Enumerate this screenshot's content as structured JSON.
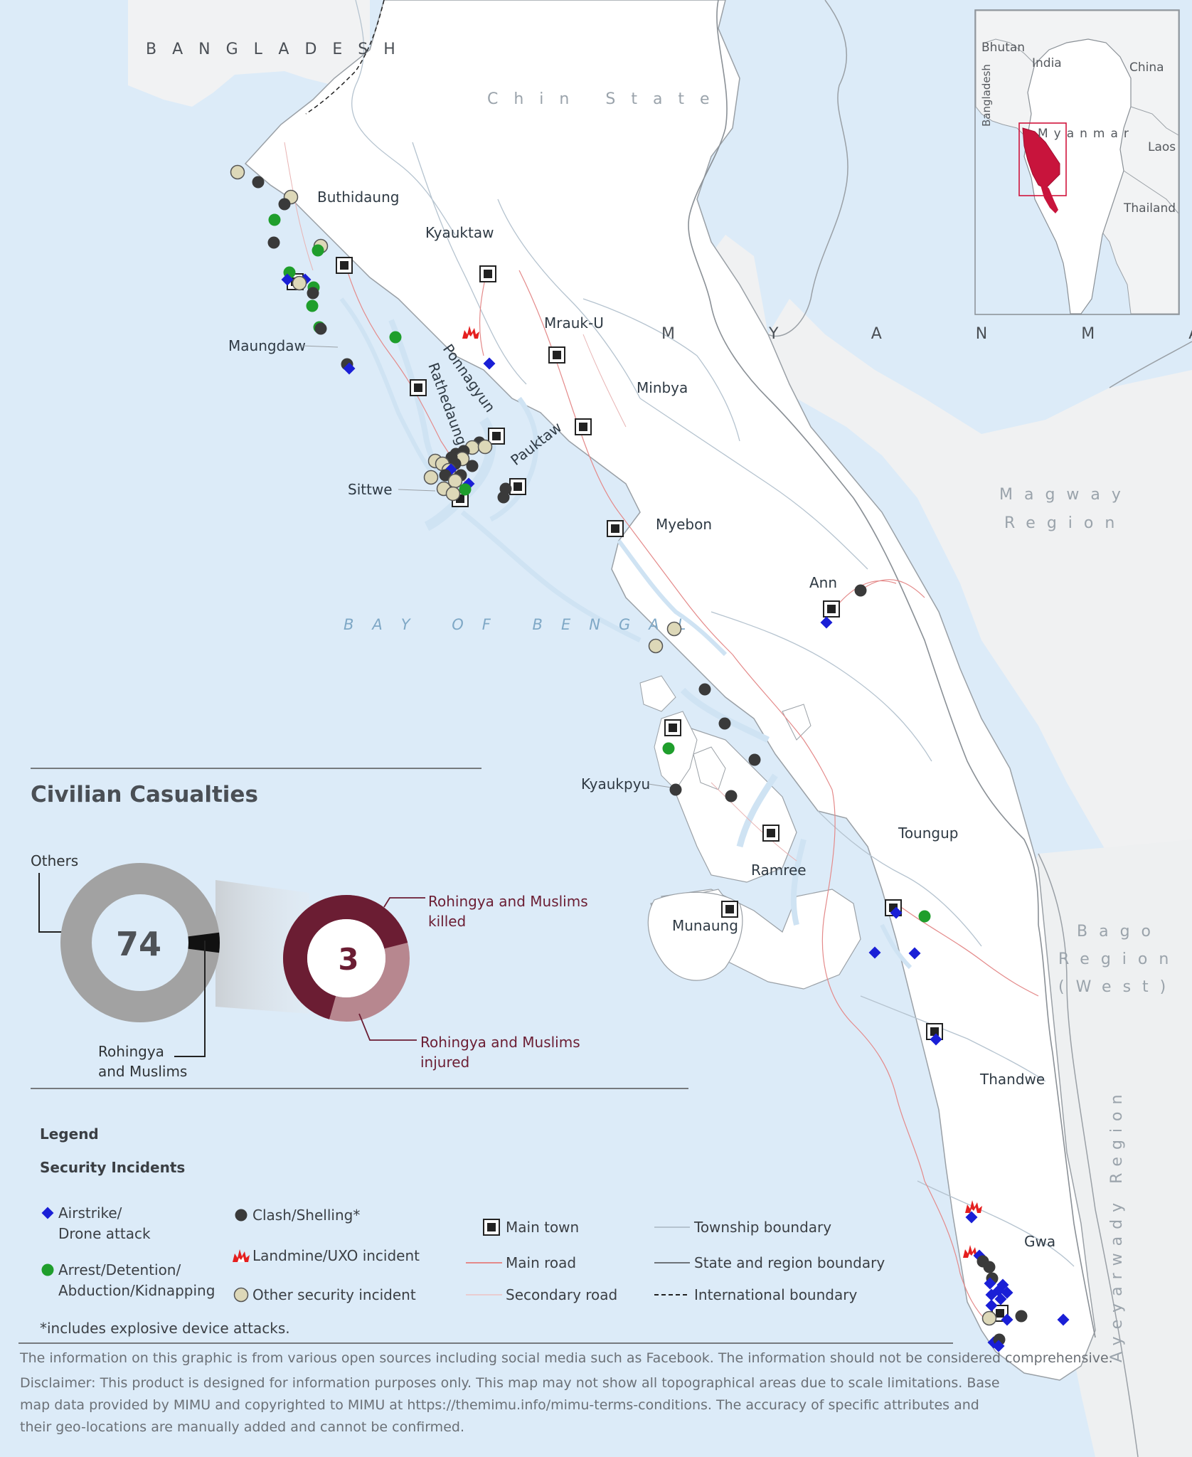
{
  "map": {
    "countries": {
      "bangladesh": "BANGLADESH",
      "myanmar": "MYANMAR"
    },
    "regions": {
      "chin": "Chin State",
      "magway_1": "Magway",
      "magway_2": "Region",
      "bago_1": "Bago",
      "bago_2": "Region",
      "bago_3": "(West)",
      "ayeyarwady": "Ayeyarwady Region"
    },
    "water": {
      "bay": "BAY OF BENGAL"
    },
    "townships": {
      "buthidaung": "Buthidaung",
      "kyauktaw": "Kyauktaw",
      "mrauk_u": "Mrauk-U",
      "maungdaw": "Maungdaw",
      "ponnagyun": "Ponnagyun",
      "rathedaung": "Rathedaung",
      "minbya": "Minbya",
      "pauktaw": "Pauktaw",
      "sittwe": "Sittwe",
      "myebon": "Myebon",
      "ann": "Ann",
      "kyaukpyu": "Kyaukpyu",
      "toungup": "Toungup",
      "ramree": "Ramree",
      "munaung": "Munaung",
      "thandwe": "Thandwe",
      "gwa": "Gwa"
    }
  },
  "inset": {
    "labels": {
      "bhutan": "Bhutan",
      "india": "India",
      "china": "China",
      "bangladesh": "Bangladesh",
      "myanmar": "Myanmar",
      "laos": "Laos",
      "thailand": "Thailand"
    }
  },
  "casualties": {
    "title": "Civilian Casualties",
    "outer_total": "74",
    "inner_total": "3",
    "others_label": "Others",
    "rohingya_label_1": "Rohingya",
    "rohingya_label_2": "and Muslims",
    "killed_label_1": "Rohingya and Muslims",
    "killed_label_2": "killed",
    "injured_label_1": "Rohingya and Muslims",
    "injured_label_2": "injured",
    "colors": {
      "others": "#a2a2a2",
      "rohingya": "#111111",
      "killed": "#6b1d33",
      "injured": "#b7878f"
    }
  },
  "chart_data": {
    "type": "pie",
    "title": "Civilian Casualties",
    "total": 74,
    "series": [
      {
        "name": "Others",
        "values": [
          71
        ]
      },
      {
        "name": "Rohingya and Muslims",
        "values": [
          3
        ]
      }
    ],
    "breakdown": [
      {
        "name": "Rohingya and Muslims killed",
        "values": [
          2
        ]
      },
      {
        "name": "Rohingya and Muslims injured",
        "values": [
          1
        ]
      }
    ]
  },
  "legend": {
    "title": "Legend",
    "subtitle": "Security Incidents",
    "airstrike_1": "Airstrike/",
    "airstrike_2": "Drone attack",
    "arrest_1": "Arrest/Detention/",
    "arrest_2": "Abduction/Kidnapping",
    "clash": "Clash/Shelling*",
    "landmine": "Landmine/UXO incident",
    "other": "Other security incident",
    "main_town": "Main town",
    "main_road": "Main road",
    "secondary_road": "Secondary road",
    "township_boundary": "Township boundary",
    "state_boundary": "State and region boundary",
    "international_boundary": "International boundary",
    "footnote": "*includes explosive device attacks.",
    "colors": {
      "airstrike": "#1a1fd6",
      "arrest": "#1f9e2c",
      "clash": "#3a3a3a",
      "landmine": "#e51f1f",
      "other": "#ddd8b8"
    }
  },
  "footer": {
    "info": "The information on this graphic is from various open sources including social media such as Facebook. The information should not be considered comprehensive.",
    "disclaimer_1": "Disclaimer: This product is designed for information purposes only. This map may not show all topographical areas due to scale limitations. Base",
    "disclaimer_2": "map data provided by MIMU and copyrighted to MIMU at https://themimu.info/mimu-terms-conditions. The accuracy of specific attributes and",
    "disclaimer_3": "their geo-locations are manually added and cannot be confirmed."
  }
}
